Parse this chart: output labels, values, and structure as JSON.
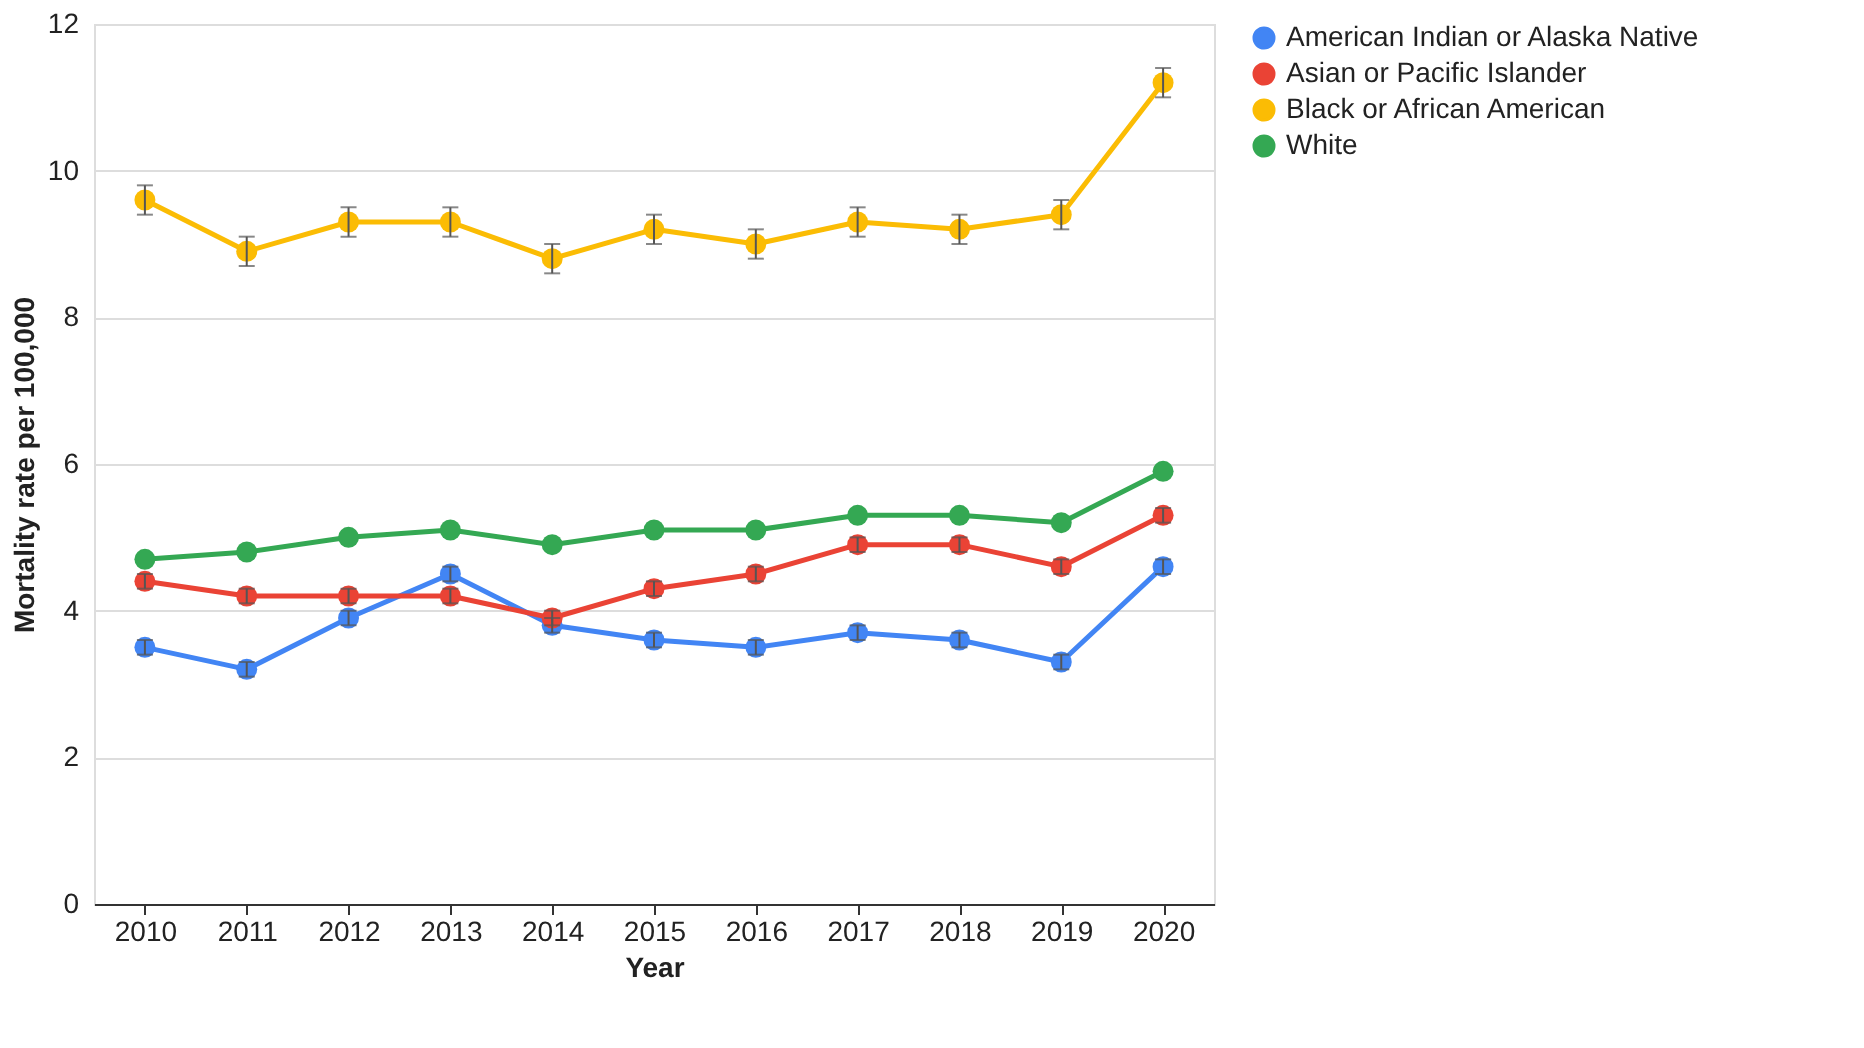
{
  "chart_data": {
    "type": "line",
    "xlabel": "Year",
    "ylabel": "Mortality rate per 100,000",
    "categories": [
      "2010",
      "2011",
      "2012",
      "2013",
      "2014",
      "2015",
      "2016",
      "2017",
      "2018",
      "2019",
      "2020"
    ],
    "series": [
      {
        "name": "American Indian or Alaska Native",
        "color": "#4285f4",
        "values": [
          3.5,
          3.2,
          3.9,
          4.5,
          3.8,
          3.6,
          3.5,
          3.7,
          3.6,
          3.3,
          4.6
        ],
        "errors": [
          0.1,
          0.1,
          0.1,
          0.1,
          0.1,
          0.1,
          0.1,
          0.1,
          0.1,
          0.1,
          0.1
        ]
      },
      {
        "name": "Asian or Pacific Islander",
        "color": "#ea4335",
        "values": [
          4.4,
          4.2,
          4.2,
          4.2,
          3.9,
          4.3,
          4.5,
          4.9,
          4.9,
          4.6,
          5.3
        ],
        "errors": [
          0.1,
          0.1,
          0.1,
          0.1,
          0.1,
          0.1,
          0.1,
          0.1,
          0.1,
          0.1,
          0.1
        ]
      },
      {
        "name": "Black or African American",
        "color": "#fbbc04",
        "values": [
          9.6,
          8.9,
          9.3,
          9.3,
          8.8,
          9.2,
          9.0,
          9.3,
          9.2,
          9.4,
          11.2
        ],
        "errors": [
          0.2,
          0.2,
          0.2,
          0.2,
          0.2,
          0.2,
          0.2,
          0.2,
          0.2,
          0.2,
          0.2
        ]
      },
      {
        "name": "White",
        "color": "#34a853",
        "values": [
          4.7,
          4.8,
          5.0,
          5.1,
          4.9,
          5.1,
          5.1,
          5.3,
          5.3,
          5.2,
          5.9
        ]
      }
    ],
    "ylim": [
      0,
      12
    ],
    "yticks": [
      0,
      2,
      4,
      6,
      8,
      10,
      12
    ],
    "grid": "y",
    "legend": "right",
    "marker": "circle",
    "line_style": "solid"
  }
}
